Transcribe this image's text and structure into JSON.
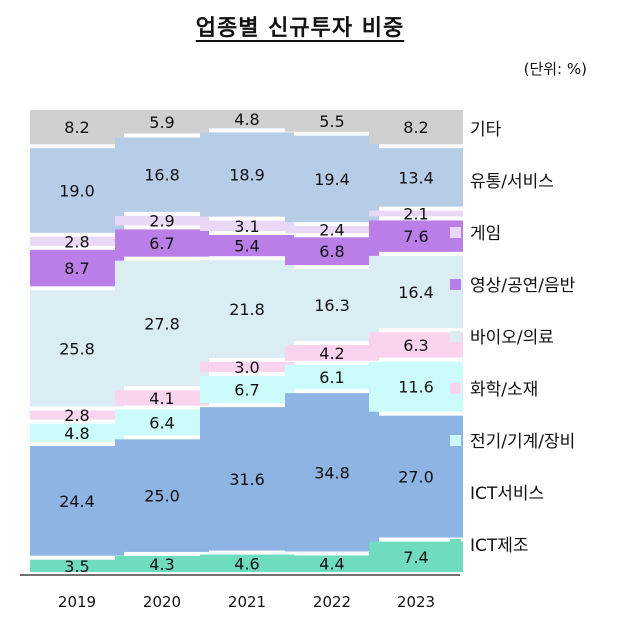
{
  "title": "업종별 신규투자 비중",
  "unit": "(단위: %)",
  "chart_data": {
    "type": "bar",
    "stacked": true,
    "categories": [
      "2019",
      "2020",
      "2021",
      "2022",
      "2023"
    ],
    "series": [
      {
        "name": "ICT제조",
        "color": "#6fdcbf",
        "values": [
          3.5,
          4.3,
          4.6,
          4.4,
          7.4
        ]
      },
      {
        "name": "ICT서비스",
        "color": "#8eb4e3",
        "values": [
          24.4,
          25.0,
          31.6,
          34.8,
          27.0
        ]
      },
      {
        "name": "전기/기계/장비",
        "color": "#ccfbfb",
        "values": [
          4.8,
          6.4,
          6.7,
          6.1,
          11.6
        ]
      },
      {
        "name": "화학/소재",
        "color": "#fad3ee",
        "values": [
          2.8,
          4.1,
          3.0,
          4.2,
          6.3
        ]
      },
      {
        "name": "바이오/의료",
        "color": "#daedf3",
        "values": [
          25.8,
          27.8,
          21.8,
          16.3,
          16.4
        ]
      },
      {
        "name": "영상/공연/음반",
        "color": "#b97ee8",
        "values": [
          8.7,
          6.7,
          5.4,
          6.8,
          7.6
        ]
      },
      {
        "name": "게임",
        "color": "#ead8f7",
        "values": [
          2.8,
          2.9,
          3.1,
          2.4,
          2.1
        ]
      },
      {
        "name": "유통/서비스",
        "color": "#b7cce6",
        "values": [
          19.0,
          16.8,
          18.9,
          19.4,
          13.4
        ]
      },
      {
        "name": "기타",
        "color": "#d0d0d0",
        "values": [
          8.2,
          5.9,
          4.8,
          5.5,
          8.2
        ]
      }
    ],
    "ylim": [
      0,
      100
    ],
    "grid": false,
    "legend_position": "right"
  }
}
